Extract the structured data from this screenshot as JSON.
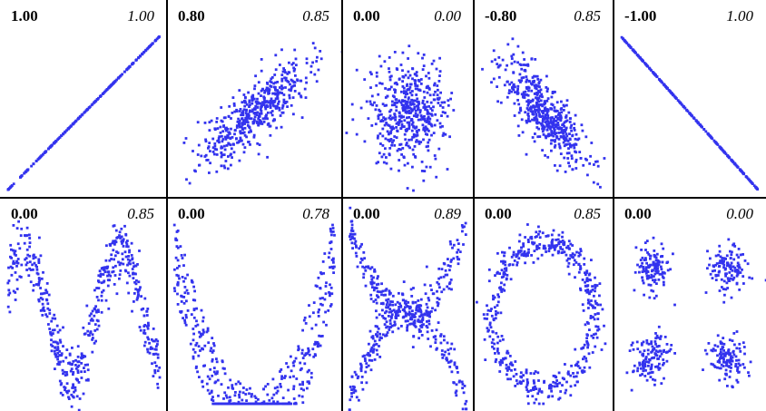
{
  "chart_data": {
    "type": "scatter",
    "point_color": "#3333ee",
    "panels": [
      {
        "row": 0,
        "col": 0,
        "left_value": "1.00",
        "right_value": "1.00",
        "pattern": "line",
        "slope": 1
      },
      {
        "row": 0,
        "col": 1,
        "left_value": "0.80",
        "right_value": "0.85",
        "pattern": "ellipse",
        "rho": 0.8
      },
      {
        "row": 0,
        "col": 2,
        "left_value": "0.00",
        "right_value": "0.00",
        "pattern": "ellipse",
        "rho": 0.0
      },
      {
        "row": 0,
        "col": 3,
        "left_value": "-0.80",
        "right_value": "0.85",
        "pattern": "ellipse",
        "rho": -0.8
      },
      {
        "row": 0,
        "col": 4,
        "left_value": "-1.00",
        "right_value": "1.00",
        "pattern": "line",
        "slope": -1
      },
      {
        "row": 1,
        "col": 0,
        "left_value": "0.00",
        "right_value": "0.85",
        "pattern": "sine"
      },
      {
        "row": 1,
        "col": 1,
        "left_value": "0.00",
        "right_value": "0.78",
        "pattern": "parabola"
      },
      {
        "row": 1,
        "col": 2,
        "left_value": "0.00",
        "right_value": "0.89",
        "pattern": "x-shape"
      },
      {
        "row": 1,
        "col": 3,
        "left_value": "0.00",
        "right_value": "0.85",
        "pattern": "ring"
      },
      {
        "row": 1,
        "col": 4,
        "left_value": "0.00",
        "right_value": "0.00",
        "pattern": "four-clusters"
      }
    ]
  }
}
